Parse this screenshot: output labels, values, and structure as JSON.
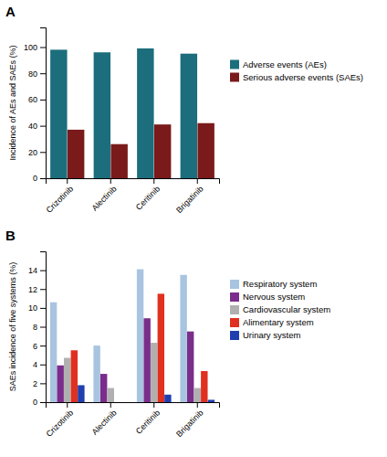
{
  "chart_data": [
    {
      "type": "bar",
      "title": "A",
      "categories": [
        "Crizotinib",
        "Alectinib",
        "Ceritinib",
        "Brigatinib"
      ],
      "series": [
        {
          "name": "Adverse events (AEs)",
          "color": "#1c6e7d",
          "values": [
            98,
            96,
            99,
            95
          ]
        },
        {
          "name": "Serious adverse events (SAEs)",
          "color": "#7a1a1a",
          "values": [
            37,
            26,
            41,
            42
          ]
        }
      ],
      "ylabel": "Incidence of AEs and SAEs (%)",
      "ylim": [
        0,
        115
      ],
      "yticks": [
        0,
        20,
        40,
        60,
        80,
        100
      ],
      "legend": "right"
    },
    {
      "type": "bar",
      "title": "B",
      "categories": [
        "Crizotinib",
        "Alectinib",
        "Ceritinib",
        "Brigatinib"
      ],
      "series": [
        {
          "name": "Respiratory system",
          "color": "#a8c4e0",
          "values": [
            10.6,
            6.0,
            14.1,
            13.5
          ]
        },
        {
          "name": "Nervous system",
          "color": "#7b2d8b",
          "values": [
            3.9,
            3.0,
            8.9,
            7.5
          ]
        },
        {
          "name": "Cardiovascular system",
          "color": "#b0b0b0",
          "values": [
            4.7,
            1.5,
            6.3,
            1.5
          ]
        },
        {
          "name": "Alimentary system",
          "color": "#e03020",
          "values": [
            5.5,
            0,
            11.5,
            3.3
          ]
        },
        {
          "name": "Urinary system",
          "color": "#2040b0",
          "values": [
            1.8,
            0,
            0.8,
            0.25
          ]
        }
      ],
      "ylabel": "SAEs incidence of five systems (%)",
      "ylim": [
        0,
        16
      ],
      "yticks": [
        0,
        2,
        4,
        6,
        8,
        10,
        12,
        14
      ],
      "legend": "right"
    }
  ]
}
